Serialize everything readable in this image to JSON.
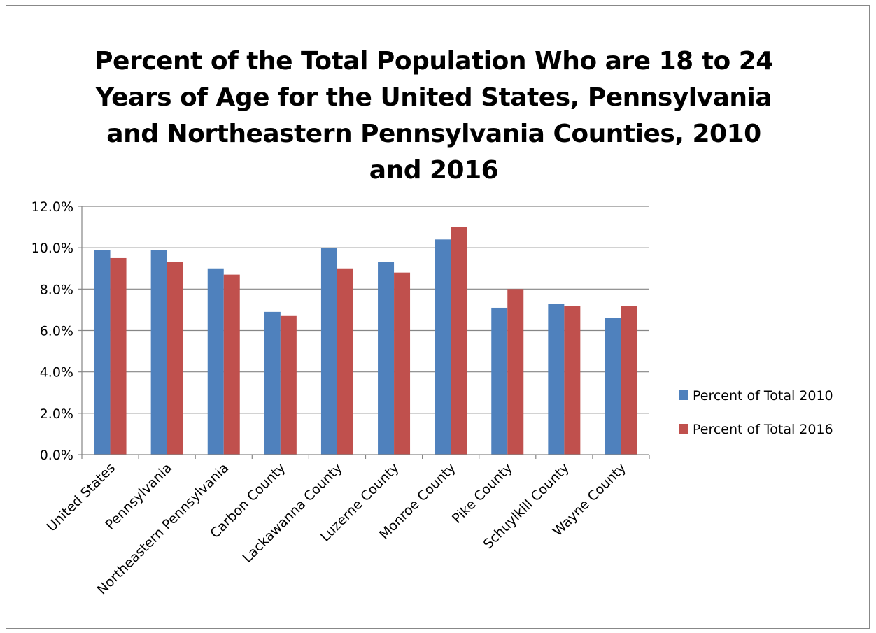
{
  "chart_data": {
    "type": "bar",
    "title": "Percent of the Total Population Who are 18 to 24 Years of Age for the United States, Pennsylvania and Northeastern Pennsylvania Counties, 2010 and 2016",
    "categories": [
      "United States",
      "Pennsylvania",
      "Northeastern Pennsylvania",
      "Carbon County",
      "Lackawanna County",
      "Luzerne County",
      "Monroe County",
      "Pike County",
      "Schuylkill County",
      "Wayne County"
    ],
    "series": [
      {
        "name": "Percent of Total 2010",
        "color": "#4F81BD",
        "values": [
          9.9,
          9.9,
          9.0,
          6.9,
          10.0,
          9.3,
          10.4,
          7.1,
          7.3,
          6.6
        ]
      },
      {
        "name": "Percent of Total 2016",
        "color": "#C0504D",
        "values": [
          9.5,
          9.3,
          8.7,
          6.7,
          9.0,
          8.8,
          11.0,
          8.0,
          7.2,
          7.2
        ]
      }
    ],
    "yticks": [
      "0.0%",
      "2.0%",
      "4.0%",
      "6.0%",
      "8.0%",
      "10.0%",
      "12.0%"
    ],
    "ylim": [
      0,
      12
    ],
    "grid": true,
    "legend_position": "right",
    "xlabel": "",
    "ylabel": ""
  }
}
